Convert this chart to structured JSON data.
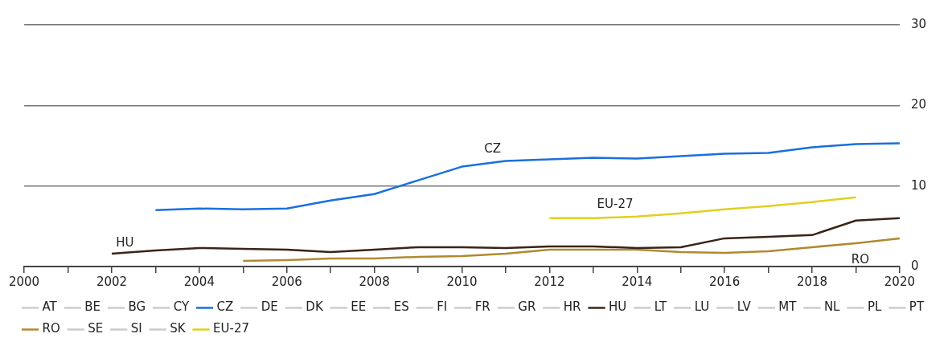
{
  "chart_data": {
    "type": "line",
    "xlim": [
      2000,
      2020
    ],
    "xticks": [
      2000,
      {
        "value": 2001,
        "label": null
      },
      2002,
      {
        "value": 2003,
        "label": null
      },
      2004,
      {
        "value": 2005,
        "label": null
      },
      2006,
      {
        "value": 2007,
        "label": null
      },
      2008,
      {
        "value": 2009,
        "label": null
      },
      2010,
      {
        "value": 2011,
        "label": null
      },
      2012,
      {
        "value": 2013,
        "label": null
      },
      2014,
      {
        "value": 2015,
        "label": null
      },
      2016,
      {
        "value": 2017,
        "label": null
      },
      2018,
      {
        "value": 2019,
        "label": null
      },
      2020
    ],
    "ylim": [
      0,
      30
    ],
    "yticks": [
      0,
      10,
      20,
      30
    ],
    "grid": "y",
    "legend": "bottom",
    "marker": "none",
    "line_style": "solid",
    "series": [
      {
        "name": "AT",
        "color": "#cccccc"
      },
      {
        "name": "BE",
        "color": "#cccccc"
      },
      {
        "name": "BG",
        "color": "#cccccc"
      },
      {
        "name": "CY",
        "color": "#cccccc"
      },
      {
        "name": "CZ",
        "color": "#1a6fe0",
        "x": [
          2003,
          2004,
          2005,
          2006,
          2007,
          2008,
          2009,
          2010,
          2011,
          2012,
          2013,
          2014,
          2015,
          2016,
          2017,
          2018,
          2019,
          2020
        ],
        "values": [
          7.0,
          7.2,
          7.1,
          7.2,
          8.2,
          9.0,
          10.7,
          12.4,
          13.1,
          13.3,
          13.5,
          13.4,
          13.7,
          14.0,
          14.1,
          14.8,
          15.2,
          15.3
        ]
      },
      {
        "name": "DE",
        "color": "#cccccc"
      },
      {
        "name": "DK",
        "color": "#cccccc"
      },
      {
        "name": "EE",
        "color": "#cccccc"
      },
      {
        "name": "ES",
        "color": "#cccccc"
      },
      {
        "name": "FI",
        "color": "#cccccc"
      },
      {
        "name": "FR",
        "color": "#cccccc"
      },
      {
        "name": "GR",
        "color": "#cccccc"
      },
      {
        "name": "HR",
        "color": "#cccccc"
      },
      {
        "name": "HU",
        "color": "#3a2418",
        "x": [
          2002,
          2003,
          2004,
          2005,
          2006,
          2007,
          2008,
          2009,
          2010,
          2011,
          2012,
          2013,
          2014,
          2015,
          2016,
          2017,
          2018,
          2019,
          2020
        ],
        "values": [
          1.6,
          2.0,
          2.3,
          2.2,
          2.1,
          1.8,
          2.1,
          2.4,
          2.4,
          2.3,
          2.5,
          2.5,
          2.3,
          2.4,
          3.5,
          3.7,
          3.9,
          5.7,
          6.0
        ]
      },
      {
        "name": "LT",
        "color": "#cccccc"
      },
      {
        "name": "LU",
        "color": "#cccccc"
      },
      {
        "name": "LV",
        "color": "#cccccc"
      },
      {
        "name": "MT",
        "color": "#cccccc"
      },
      {
        "name": "NL",
        "color": "#cccccc"
      },
      {
        "name": "PL",
        "color": "#cccccc"
      },
      {
        "name": "PT",
        "color": "#cccccc"
      },
      {
        "name": "RO",
        "color": "#b08a30",
        "x": [
          2005,
          2006,
          2007,
          2008,
          2009,
          2010,
          2011,
          2012,
          2013,
          2014,
          2015,
          2016,
          2017,
          2018,
          2019,
          2020
        ],
        "values": [
          0.7,
          0.8,
          1.0,
          1.0,
          1.2,
          1.3,
          1.6,
          2.1,
          2.1,
          2.1,
          1.8,
          1.7,
          1.9,
          2.4,
          2.9,
          3.5
        ]
      },
      {
        "name": "SE",
        "color": "#cccccc"
      },
      {
        "name": "SI",
        "color": "#cccccc"
      },
      {
        "name": "SK",
        "color": "#cccccc"
      },
      {
        "name": "EU-27",
        "color": "#e0d020",
        "x": [
          2012,
          2013,
          2014,
          2015,
          2016,
          2017,
          2018,
          2019
        ],
        "values": [
          6.0,
          6.0,
          6.2,
          6.6,
          7.1,
          7.5,
          8.0,
          8.6
        ]
      }
    ],
    "annotations": [
      "CZ",
      "EU-27",
      "HU",
      "RO"
    ]
  }
}
